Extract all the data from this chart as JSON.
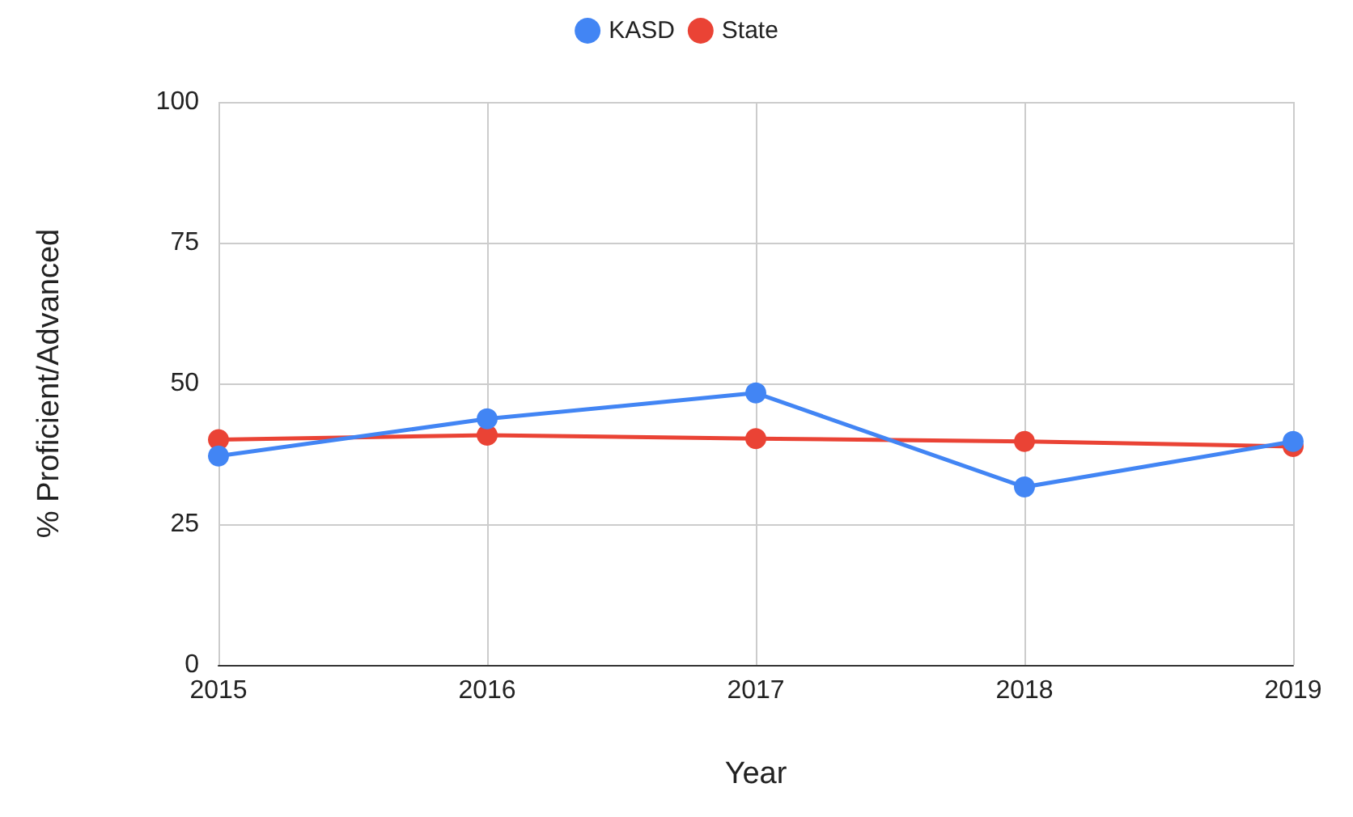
{
  "chart_data": {
    "type": "line",
    "xlabel": "Year",
    "ylabel": "% Proficient/Advanced",
    "categories": [
      "2015",
      "2016",
      "2017",
      "2018",
      "2019"
    ],
    "series": [
      {
        "name": "KASD",
        "color": "#4285f4",
        "values": [
          37.1,
          43.7,
          48.3,
          31.6,
          39.7
        ]
      },
      {
        "name": "State",
        "color": "#ea4335",
        "values": [
          40,
          40.8,
          40.2,
          39.7,
          38.8
        ]
      }
    ],
    "ylim": [
      0,
      100
    ],
    "yticks": [
      0,
      25,
      50,
      75,
      100
    ],
    "grid": true,
    "legend": "top",
    "marker": "circle",
    "line_style": "solid"
  }
}
